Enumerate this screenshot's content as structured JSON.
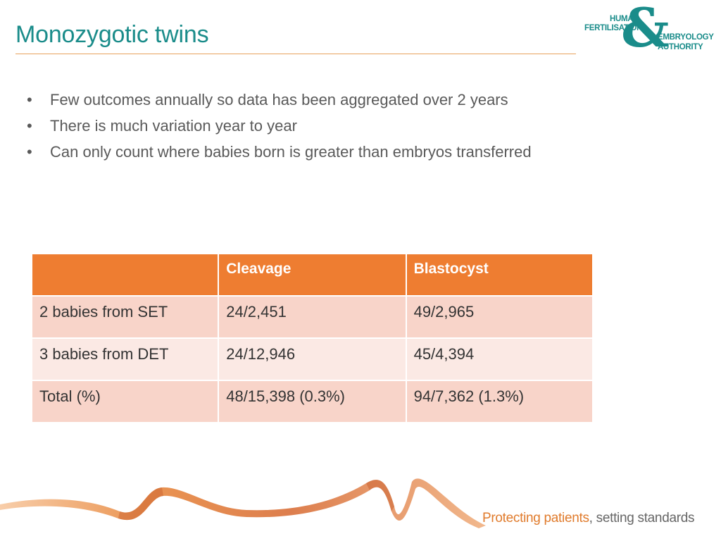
{
  "title": "Monozygotic twins",
  "logo": {
    "line1": "HUMAN",
    "line2": "FERTILISATION",
    "line3": "EMBRYOLOGY",
    "line4": "AUTHORITY",
    "ampersand": "&",
    "color": "#1a8c8a"
  },
  "bullets": [
    "Few outcomes annually so data has been aggregated over 2 years",
    "There is much variation year to year",
    "Can only count where babies born is greater than embryos transferred"
  ],
  "bullet_glyph": "•",
  "table": {
    "headers": [
      "",
      "Cleavage",
      "Blastocyst"
    ],
    "rows": [
      [
        "2 babies from SET",
        "24/2,451",
        "49/2,965"
      ],
      [
        "3 babies from DET",
        "24/12,946",
        "45/4,394"
      ],
      [
        "Total (%)",
        "48/15,398 (0.3%)",
        "94/7,362 (1.3%)"
      ]
    ],
    "header_color": "#ee7d31"
  },
  "footer": {
    "tagline_strong": "Protecting patients",
    "tagline_rest": ", setting standards",
    "accent_color": "#e07b2c"
  }
}
